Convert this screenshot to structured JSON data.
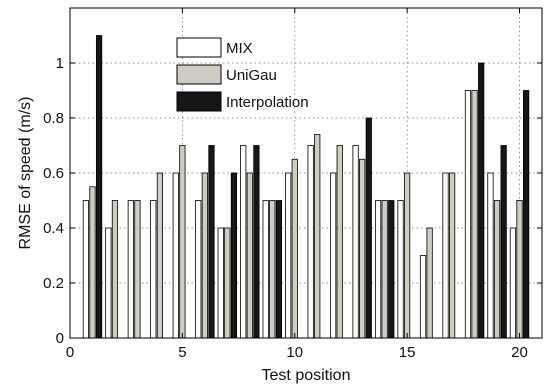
{
  "chart_data": {
    "type": "bar",
    "title": "",
    "xlabel": "Test position",
    "ylabel": "RMSE of speed (m/s)",
    "xlim": [
      0,
      21
    ],
    "ylim": [
      0,
      1.2
    ],
    "xticks": [
      0,
      5,
      10,
      15,
      20
    ],
    "yticks": [
      0,
      0.2,
      0.4,
      0.6,
      0.8,
      1
    ],
    "xtick_labels": [
      "0",
      "5",
      "10",
      "15",
      "20"
    ],
    "ytick_labels": [
      "0",
      "0.2",
      "0.4",
      "0.6",
      "0.8",
      "1"
    ],
    "grid": true,
    "legend_position": "top-center",
    "categories": [
      1,
      2,
      3,
      4,
      5,
      6,
      7,
      8,
      9,
      10,
      11,
      12,
      13,
      14,
      15,
      16,
      17,
      18,
      19,
      20
    ],
    "series": [
      {
        "name": "MIX",
        "color": "#ffffff",
        "values": [
          0.5,
          0.4,
          0.5,
          0.5,
          0.6,
          0.5,
          0.4,
          0.7,
          0.5,
          0.6,
          0.7,
          0.6,
          0.7,
          0.5,
          0.5,
          0.3,
          0.6,
          0.9,
          0.6,
          0.4
        ]
      },
      {
        "name": "UniGau",
        "color": "#cfccc4",
        "values": [
          0.55,
          0.5,
          0.5,
          0.6,
          0.7,
          0.6,
          0.4,
          0.6,
          0.5,
          0.65,
          0.74,
          0.7,
          0.65,
          0.5,
          0.6,
          0.4,
          0.6,
          0.9,
          0.5,
          0.5
        ]
      },
      {
        "name": "Interpolation",
        "color": "#161616",
        "values": [
          1.1,
          0,
          0,
          0,
          0,
          0.7,
          0.6,
          0.7,
          0.5,
          0,
          0,
          0,
          0.8,
          0.5,
          0,
          0,
          0,
          1.0,
          0.7,
          0.9
        ]
      }
    ]
  }
}
